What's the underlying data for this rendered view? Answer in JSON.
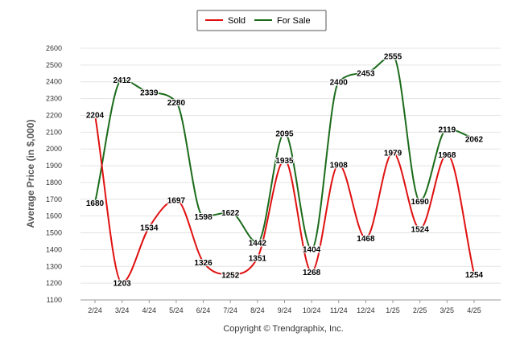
{
  "chart_data": {
    "type": "line",
    "ylabel": "Average Price (in $,000)",
    "footer": "Copyright © Trendgraphix, Inc.",
    "categories": [
      "2/24",
      "3/24",
      "4/24",
      "5/24",
      "6/24",
      "7/24",
      "8/24",
      "9/24",
      "10/24",
      "11/24",
      "12/24",
      "1/25",
      "2/25",
      "3/25",
      "4/25"
    ],
    "ylim": [
      1100,
      2600
    ],
    "yticks": [
      1100,
      1200,
      1300,
      1400,
      1500,
      1600,
      1700,
      1800,
      1900,
      2000,
      2100,
      2200,
      2300,
      2400,
      2500,
      2600
    ],
    "grid": true,
    "legend_position": "top-center",
    "series": [
      {
        "name": "Sold",
        "color": "#e01010",
        "values": [
          2204,
          1203,
          1534,
          1697,
          1326,
          1252,
          1351,
          1935,
          1268,
          1908,
          1468,
          1979,
          1524,
          1968,
          1254
        ]
      },
      {
        "name": "For Sale",
        "color": "#1b6b1b",
        "values": [
          1680,
          2412,
          2339,
          2280,
          1598,
          1622,
          1442,
          2095,
          1404,
          2400,
          2453,
          2555,
          1690,
          2119,
          2062
        ]
      }
    ]
  }
}
